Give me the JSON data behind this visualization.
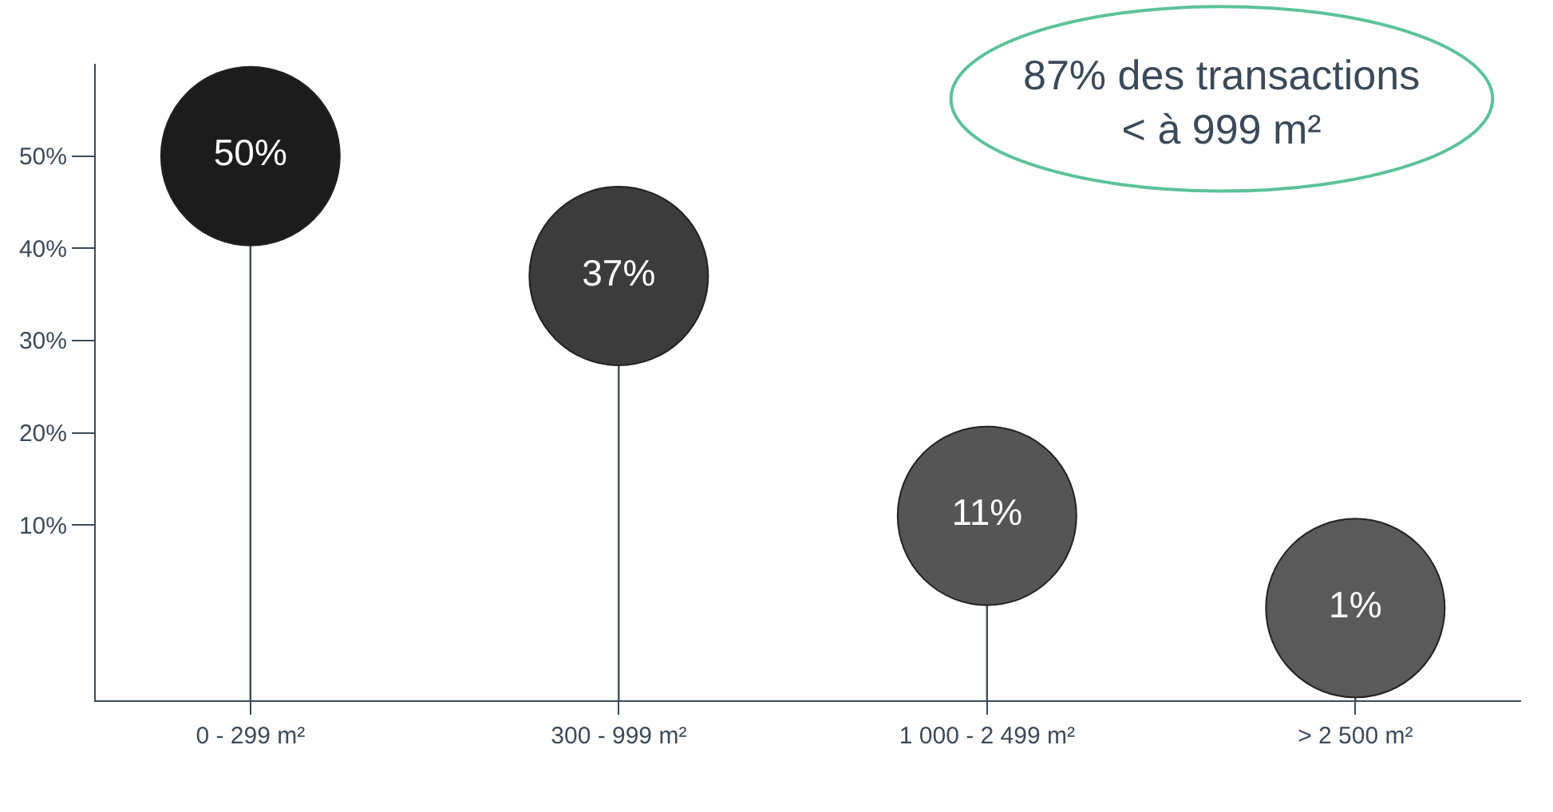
{
  "chart_data": {
    "type": "lollipop",
    "categories": [
      "0 - 299 m²",
      "300 - 999 m²",
      "1 000 - 2 499 m²",
      "> 2 500 m²"
    ],
    "values": [
      50,
      37,
      11,
      1
    ],
    "colors": [
      "#1c1c1c",
      "#3c3c3c",
      "#555555",
      "#5a5a5a"
    ],
    "data_labels": true,
    "value_labels": [
      "50%",
      "37%",
      "11%",
      "1%"
    ],
    "ylim": [
      -9,
      60
    ],
    "yticks": [
      {
        "value": 10,
        "label": "10%"
      },
      {
        "value": 20,
        "label": "20%"
      },
      {
        "value": 30,
        "label": "30%"
      },
      {
        "value": 40,
        "label": "40%"
      },
      {
        "value": 50,
        "label": "50%"
      }
    ],
    "marker": "circle",
    "annotations": [
      "87% des transactions\n< à 999 m²"
    ]
  }
}
